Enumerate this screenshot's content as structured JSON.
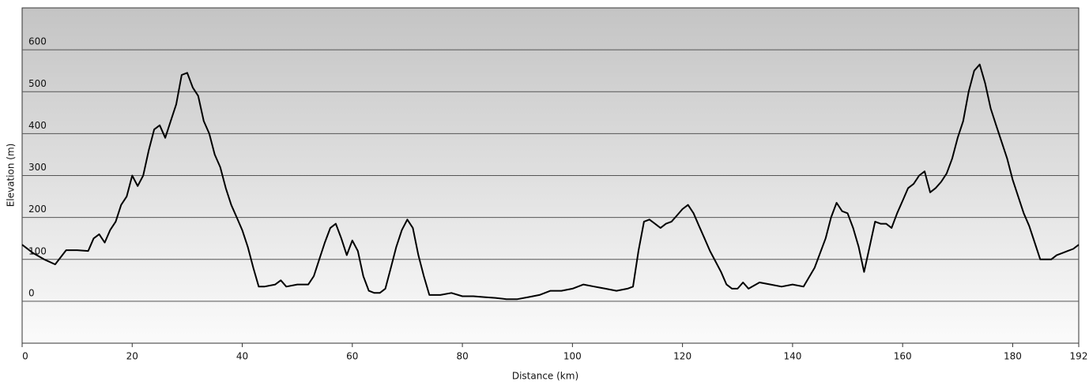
{
  "chart_data": {
    "type": "line",
    "x_label": "Distance  (km)",
    "y_label": "Elevation (m)",
    "color": "#000000",
    "grid": true,
    "xlim": [
      0,
      192
    ],
    "ylim": [
      -100,
      700
    ],
    "xticks": [
      0,
      20,
      40,
      60,
      80,
      100,
      120,
      140,
      160,
      180,
      192
    ],
    "yticks": [
      0,
      100,
      200,
      300,
      400,
      500,
      600
    ],
    "x": [
      0,
      2,
      4,
      6,
      8,
      10,
      12,
      13,
      14,
      15,
      16,
      17,
      18,
      19,
      20,
      21,
      22,
      23,
      24,
      25,
      26,
      27,
      28,
      29,
      30,
      31,
      32,
      33,
      34,
      35,
      36,
      37,
      38,
      39,
      40,
      41,
      42,
      43,
      44,
      46,
      47,
      48,
      50,
      52,
      53,
      54,
      55,
      56,
      57,
      58,
      59,
      60,
      61,
      62,
      63,
      64,
      65,
      66,
      67,
      68,
      69,
      70,
      71,
      72,
      73,
      74,
      76,
      78,
      80,
      82,
      84,
      86,
      88,
      90,
      92,
      94,
      96,
      98,
      100,
      102,
      104,
      106,
      108,
      110,
      111,
      112,
      113,
      114,
      115,
      116,
      117,
      118,
      119,
      120,
      121,
      122,
      123,
      124,
      125,
      126,
      127,
      128,
      129,
      130,
      131,
      132,
      134,
      136,
      138,
      140,
      142,
      144,
      146,
      147,
      148,
      149,
      150,
      151,
      152,
      153,
      154,
      155,
      156,
      157,
      158,
      159,
      160,
      161,
      162,
      163,
      164,
      165,
      166,
      167,
      168,
      169,
      170,
      171,
      172,
      173,
      174,
      175,
      176,
      177,
      178,
      179,
      180,
      181,
      182,
      183,
      184,
      185,
      186,
      187,
      188,
      189,
      190,
      191,
      192
    ],
    "values": [
      135,
      115,
      100,
      88,
      122,
      122,
      120,
      150,
      160,
      140,
      170,
      190,
      230,
      250,
      300,
      275,
      300,
      360,
      410,
      420,
      390,
      430,
      470,
      540,
      545,
      510,
      490,
      430,
      400,
      350,
      320,
      270,
      230,
      200,
      170,
      130,
      80,
      35,
      35,
      40,
      50,
      35,
      40,
      40,
      60,
      100,
      140,
      175,
      185,
      150,
      110,
      145,
      120,
      60,
      25,
      20,
      20,
      30,
      80,
      130,
      170,
      195,
      175,
      110,
      60,
      15,
      15,
      20,
      12,
      12,
      10,
      8,
      5,
      5,
      10,
      15,
      25,
      25,
      30,
      40,
      35,
      30,
      25,
      30,
      35,
      120,
      190,
      195,
      185,
      175,
      185,
      190,
      205,
      220,
      230,
      210,
      180,
      150,
      120,
      95,
      70,
      40,
      30,
      30,
      45,
      30,
      45,
      40,
      35,
      40,
      35,
      80,
      150,
      200,
      235,
      215,
      210,
      175,
      130,
      70,
      130,
      190,
      185,
      185,
      175,
      210,
      240,
      270,
      280,
      300,
      310,
      260,
      270,
      285,
      305,
      340,
      390,
      430,
      500,
      550,
      565,
      520,
      460,
      420,
      380,
      340,
      290,
      250,
      210,
      180,
      140,
      100,
      100,
      100,
      110,
      115,
      120,
      125,
      135
    ]
  }
}
